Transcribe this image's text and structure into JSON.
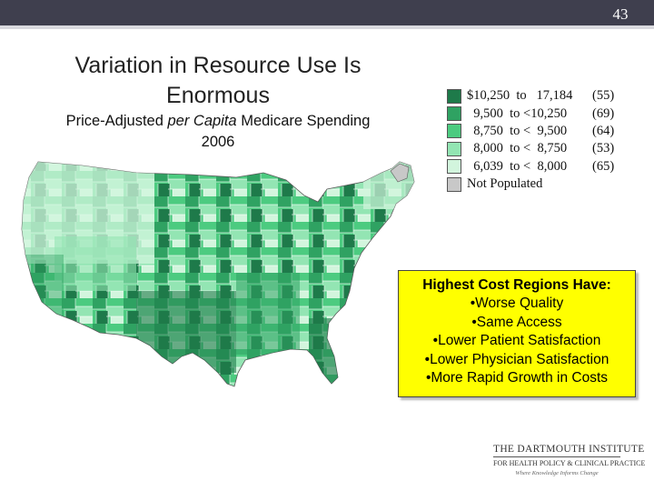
{
  "slide": {
    "page_number": "43",
    "title": "Variation in Resource Use Is Enormous",
    "subtitle_pre": "Price-Adjusted ",
    "subtitle_italic": "per Capita",
    "subtitle_post": " Medicare Spending",
    "subtitle_year": "2006"
  },
  "legend": {
    "items": [
      {
        "range": "$10,250  to   17,184",
        "count": "(55)",
        "color": "#1e7a4a"
      },
      {
        "range": "  9,500  to <10,250",
        "count": "(69)",
        "color": "#2fa262"
      },
      {
        "range": "  8,750  to <  9,500",
        "count": "(64)",
        "color": "#4ccb80"
      },
      {
        "range": "  8,000  to <  8,750",
        "count": "(53)",
        "color": "#93e5b3"
      },
      {
        "range": "  6,039  to <  8,000",
        "count": "(65)",
        "color": "#d2f5dd"
      }
    ],
    "not_populated": {
      "label": "Not Populated",
      "color": "#c8c8c8"
    }
  },
  "callout": {
    "heading": "Highest Cost Regions Have:",
    "items": [
      "•Worse Quality",
      "•Same Access",
      "•Lower Patient Satisfaction",
      "•Lower Physician Satisfaction",
      "•More Rapid Growth in Costs"
    ]
  },
  "logo": {
    "line1": "THE DARTMOUTH INSTITUTE",
    "line2": "FOR HEALTH POLICY & CLINICAL PRACTICE",
    "tagline": "Where Knowledge Informs Change"
  }
}
